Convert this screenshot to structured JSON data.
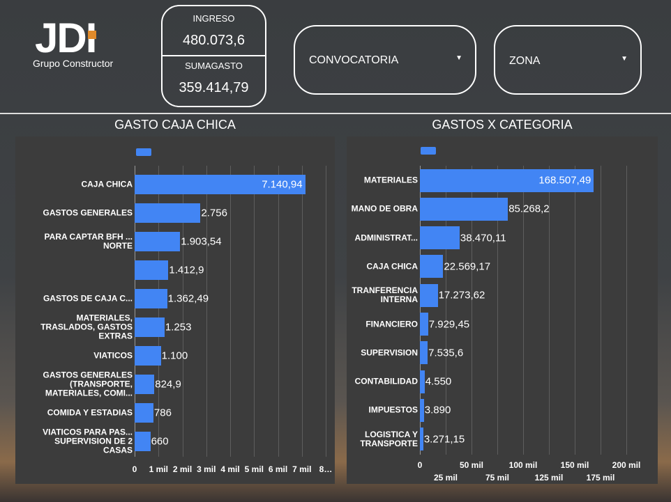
{
  "header": {
    "logo": "JDI",
    "logo_subtitle": "Grupo Constructor"
  },
  "kpis": [
    {
      "label": "INGRESO",
      "value": "480.073,6"
    },
    {
      "label": "SUMAGASTO",
      "value": "359.414,79"
    }
  ],
  "filters": [
    "CONVOCATORIA",
    "ZONA"
  ],
  "chart_data": [
    {
      "type": "bar",
      "orientation": "horizontal",
      "title": "GASTO CAJA CHICA",
      "color": "#4285f4",
      "grid": true,
      "categories": [
        "CAJA CHICA",
        "GASTOS GENERALES",
        "PARA CAPTAR BFH ...\nNORTE",
        null,
        "GASTOS DE CAJA C...",
        "MATERIALES,\nTRASLADOS, GASTOS\nEXTRAS",
        "VIATICOS",
        "GASTOS GENERALES\n(TRANSPORTE,\nMATERIALES, COMI...",
        "COMIDA Y ESTADIAS",
        "VIATICOS PARA PAS...\nSUPERVISION DE 2\nCASAS"
      ],
      "values": [
        7140.94,
        2756,
        1903.54,
        1412.9,
        1362.49,
        1253,
        1100,
        824.9,
        786,
        660
      ],
      "value_labels": [
        "7.140,94",
        "2.756",
        "1.903,54",
        "1.412,9",
        "1.362,49",
        "1.253",
        "1.100",
        "824,9",
        "786",
        "660"
      ],
      "xlim": [
        0,
        8000
      ],
      "xticks": [
        0,
        {
          "value": 1000,
          "label": "1 mil"
        },
        {
          "value": 2000,
          "label": "2 mil"
        },
        {
          "value": 3000,
          "label": "3 mil"
        },
        {
          "value": 4000,
          "label": "4 mil"
        },
        {
          "value": 5000,
          "label": "5 mil"
        },
        {
          "value": 6000,
          "label": "6 mil"
        },
        {
          "value": 7000,
          "label": "7 mil"
        },
        {
          "value": 8000,
          "label": "8…"
        }
      ]
    },
    {
      "type": "bar",
      "orientation": "horizontal",
      "title": "GASTOS X CATEGORIA",
      "color": "#4285f4",
      "grid": true,
      "categories": [
        "MATERIALES",
        "MANO DE OBRA",
        "ADMINISTRAT...",
        "CAJA CHICA",
        "TRANFERENCIA\nINTERNA",
        "FINANCIERO",
        "SUPERVISION",
        "CONTABILIDAD",
        "IMPUESTOS",
        "LOGISTICA Y\nTRANSPORTE"
      ],
      "values": [
        168507.49,
        85268.2,
        38470.11,
        22569.17,
        17273.62,
        7929.45,
        7535.6,
        4550,
        3890,
        3271.15
      ],
      "value_labels": [
        "168.507,49",
        "85.268,2",
        "38.470,11",
        "22.569,17",
        "17.273,62",
        "7.929,45",
        "7.535,6",
        "4.550",
        "3.890",
        "3.271,15"
      ],
      "xlim": [
        0,
        200000
      ],
      "xticks": [
        0,
        {
          "value": 25000,
          "label": "25 mil"
        },
        {
          "value": 50000,
          "label": "50 mil"
        },
        {
          "value": 75000,
          "label": "75 mil"
        },
        {
          "value": 100000,
          "label": "100 mil"
        },
        {
          "value": 125000,
          "label": "125 mil"
        },
        {
          "value": 150000,
          "label": "150 mil"
        },
        {
          "value": 175000,
          "label": "175 mil"
        },
        {
          "value": 200000,
          "label": "200 mil"
        }
      ]
    }
  ]
}
